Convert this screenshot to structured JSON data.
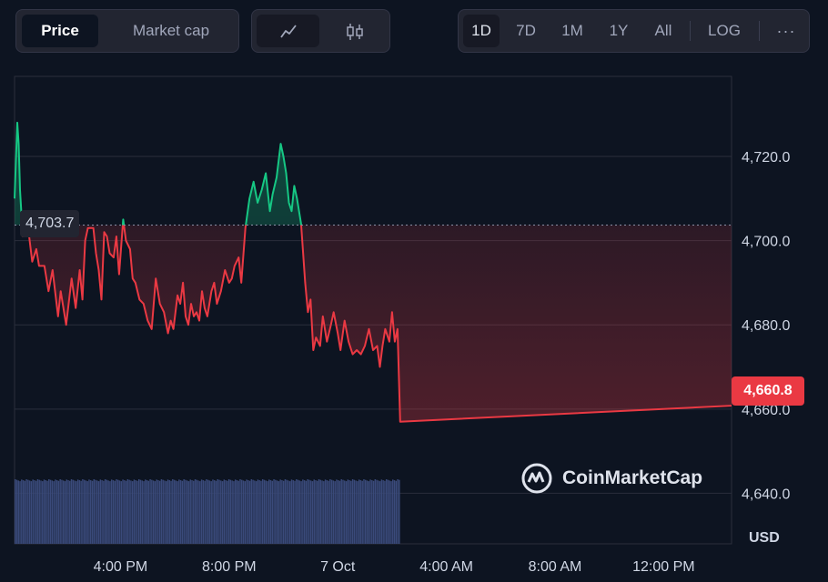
{
  "toolbar": {
    "type_tabs": [
      {
        "label": "Price",
        "active": true
      },
      {
        "label": "Market cap",
        "active": false
      }
    ],
    "view_icons": [
      {
        "icon": "line-chart-icon",
        "active": true
      },
      {
        "icon": "candlestick-icon",
        "active": false
      }
    ],
    "ranges": [
      {
        "label": "1D",
        "active": true
      },
      {
        "label": "7D",
        "active": false
      },
      {
        "label": "1M",
        "active": false
      },
      {
        "label": "1Y",
        "active": false
      },
      {
        "label": "All",
        "active": false
      }
    ],
    "log_label": "LOG",
    "more_icon": "more-horizontal-icon"
  },
  "colors": {
    "background": "#0d1421",
    "up": "#16c784",
    "down": "#ea3943",
    "volume": "#3a4a7a",
    "grid": "#2a2e3c"
  },
  "watermark": {
    "text": "CoinMarketCap",
    "icon": "coinmarketcap-logo-icon"
  },
  "chart_data": {
    "type": "line",
    "title": "",
    "xlabel": "",
    "ylabel": "USD",
    "y_axis_position": "right",
    "y_ticks": [
      "4,720.0",
      "4,700.0",
      "4,680.0",
      "4,660.0",
      "4,640.0"
    ],
    "y_tick_values": [
      4720,
      4700,
      4680,
      4660,
      4640
    ],
    "x_ticks": [
      "4:00 PM",
      "8:00 PM",
      "7 Oct",
      "4:00 AM",
      "8:00 AM",
      "12:00 PM"
    ],
    "x_tick_hours": [
      16,
      20,
      24,
      28,
      32,
      36
    ],
    "ylim": [
      4628,
      4739
    ],
    "xlim": [
      12.1,
      38.5
    ],
    "grid": true,
    "reference_price": 4703.7,
    "reference_label": "4,703.7",
    "current_price": 4660.8,
    "current_label": "4,660.8",
    "series": [
      {
        "x": [
          12.1,
          12.2,
          12.25,
          12.3,
          12.4,
          12.5,
          12.6,
          12.75,
          12.9,
          13.0,
          13.2,
          13.35,
          13.5,
          13.7,
          13.8,
          14.0,
          14.2,
          14.35,
          14.5,
          14.6,
          14.7,
          14.8,
          15.0,
          15.1,
          15.2,
          15.3,
          15.4,
          15.5,
          15.6,
          15.75,
          15.85,
          15.95,
          16.1,
          16.2,
          16.35,
          16.45,
          16.55,
          16.7,
          16.85,
          17.0,
          17.15,
          17.3,
          17.45,
          17.6,
          17.75,
          17.85,
          17.95,
          18.1,
          18.2,
          18.3,
          18.4,
          18.5,
          18.6,
          18.7,
          18.8,
          18.9,
          19.0,
          19.1,
          19.2,
          19.35,
          19.45,
          19.55,
          19.7,
          19.85,
          20.0,
          20.1,
          20.2,
          20.35,
          20.45,
          20.6,
          20.75,
          20.9,
          21.05,
          21.2,
          21.35,
          21.5,
          21.6,
          21.75,
          21.9,
          22.0,
          22.1,
          22.2,
          22.3,
          22.4,
          22.5,
          22.65,
          22.8,
          22.9,
          23.0,
          23.1,
          23.2,
          23.35,
          23.45,
          23.6,
          23.75,
          23.85,
          24.0,
          24.1,
          24.25,
          24.4,
          24.55,
          24.7,
          24.85,
          25.0,
          25.15,
          25.3,
          25.45,
          25.55,
          25.65,
          25.75,
          25.9,
          26.0,
          26.1,
          26.2,
          26.3,
          38.5
        ],
        "y": [
          4710,
          4728,
          4723,
          4712,
          4701,
          4706,
          4703,
          4695,
          4698,
          4694,
          4694,
          4688,
          4693,
          4682,
          4688,
          4680,
          4691,
          4684,
          4693,
          4686,
          4700,
          4703,
          4703,
          4697,
          4693,
          4686,
          4702,
          4701,
          4697,
          4696,
          4701,
          4692,
          4705,
          4700,
          4698,
          4691,
          4690,
          4686,
          4685,
          4681,
          4679,
          4691,
          4685,
          4683,
          4678,
          4681,
          4679,
          4687,
          4685,
          4690,
          4682,
          4680,
          4685,
          4682,
          4683,
          4681,
          4688,
          4684,
          4682,
          4688,
          4690,
          4685,
          4688,
          4693,
          4690,
          4691,
          4694,
          4696,
          4690,
          4703,
          4710,
          4714,
          4709,
          4712,
          4716,
          4707,
          4711,
          4715,
          4723,
          4720,
          4716,
          4709,
          4707,
          4713,
          4710,
          4704,
          4690,
          4683,
          4686,
          4674,
          4677,
          4675,
          4682,
          4676,
          4680,
          4683,
          4678,
          4674,
          4681,
          4676,
          4673,
          4674,
          4673,
          4675,
          4679,
          4674,
          4675,
          4670,
          4675,
          4679,
          4676,
          4683,
          4676,
          4679,
          4657,
          4660.8
        ]
      }
    ],
    "volume_bars": 240
  }
}
